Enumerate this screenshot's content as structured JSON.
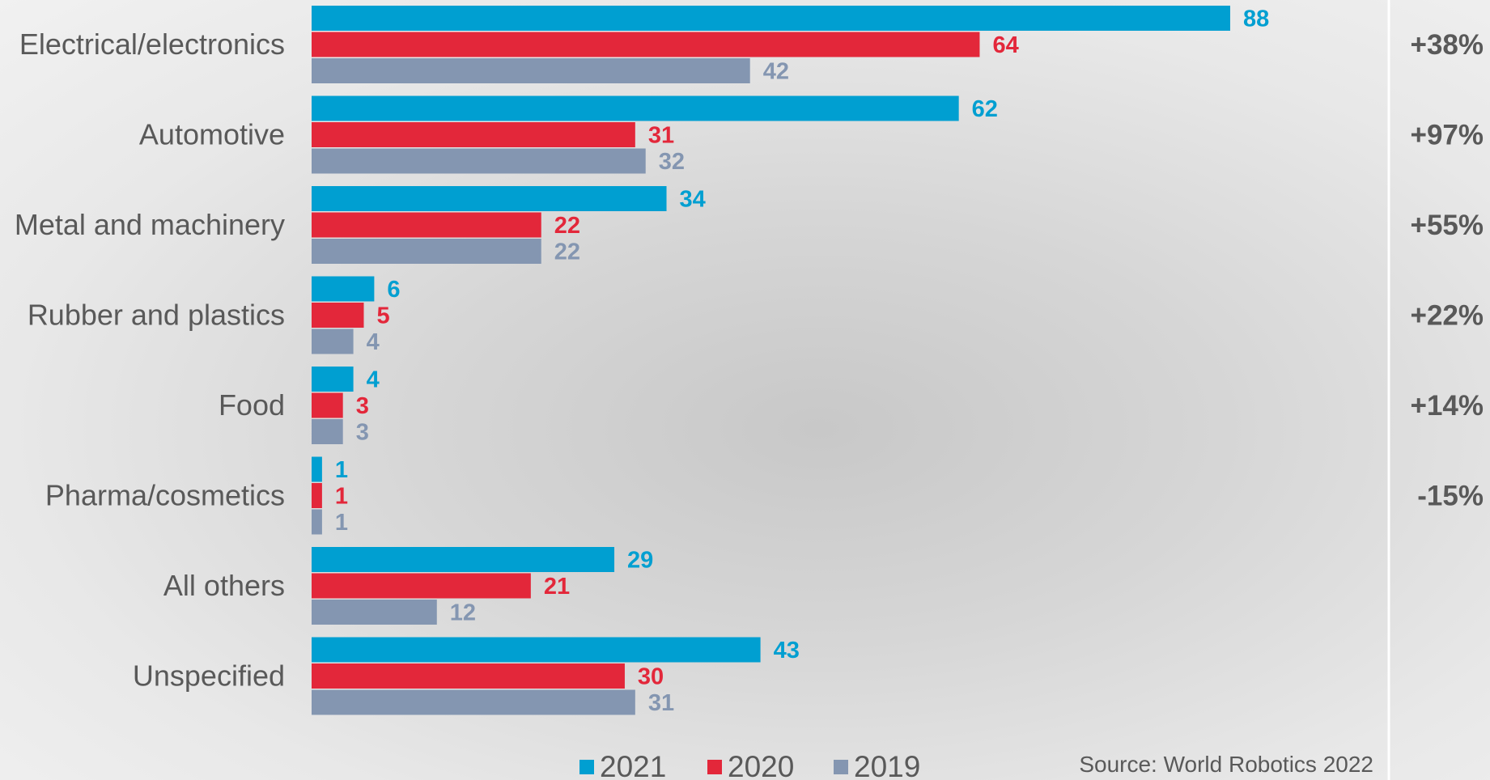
{
  "chart_data": {
    "type": "bar",
    "orientation": "horizontal",
    "categories": [
      "Electrical/electronics",
      "Automotive",
      "Metal and machinery",
      "Rubber and plastics",
      "Food",
      "Pharma/cosmetics",
      "All others",
      "Unspecified"
    ],
    "series": [
      {
        "name": "2021",
        "color": "#009fd1",
        "values": [
          88,
          62,
          34,
          6,
          4,
          1,
          29,
          43
        ]
      },
      {
        "name": "2020",
        "color": "#e3273a",
        "values": [
          64,
          31,
          22,
          5,
          3,
          1,
          21,
          30
        ]
      },
      {
        "name": "2019",
        "color": "#8496b1",
        "values": [
          42,
          32,
          22,
          4,
          3,
          1,
          12,
          31
        ]
      }
    ],
    "growth": [
      "+38%",
      "+97%",
      "+55%",
      "+22%",
      "+14%",
      "-15%",
      "",
      ""
    ],
    "xlim": [
      0,
      92
    ],
    "legend_position": "bottom",
    "grid": false,
    "source": "Source: World Robotics 2022"
  }
}
